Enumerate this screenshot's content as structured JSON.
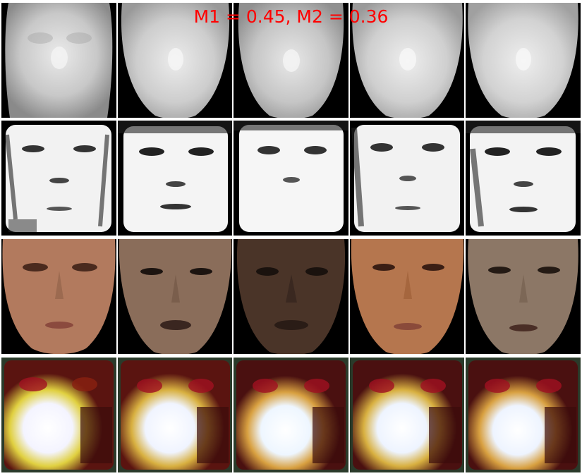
{
  "caption": {
    "text": "M1 = 0.45, M2 = 0.36",
    "color": "#ff0000"
  },
  "rows": [
    {
      "kind": "depth-map",
      "tiles": 5
    },
    {
      "kind": "normal-map",
      "tiles": 5
    },
    {
      "kind": "face-photo",
      "tiles": 5,
      "skin_tones": [
        "#b27a5e",
        "#8a6d5a",
        "#4a3428",
        "#b5764e",
        "#8c7766"
      ]
    },
    {
      "kind": "reconstruction-heatmap",
      "tiles": 5
    }
  ]
}
